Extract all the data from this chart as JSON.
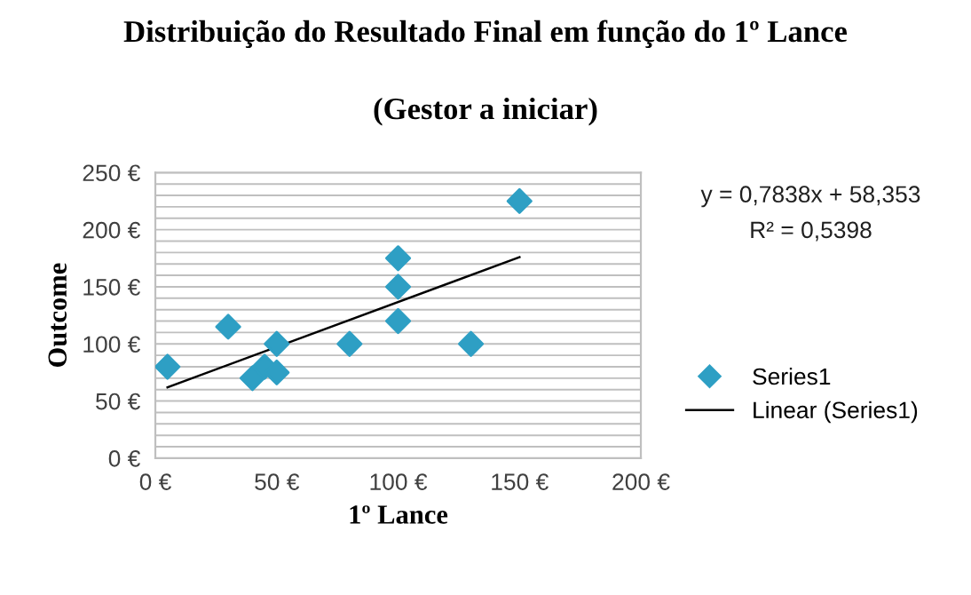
{
  "chart_data": {
    "type": "scatter",
    "title": "Distribuição do Resultado Final em função do 1º Lance",
    "subtitle": "(Gestor a iniciar)",
    "xlabel": "1º Lance",
    "ylabel": "Outcome",
    "series": [
      {
        "name": "Series1",
        "color": "#2e9fc4",
        "marker": "diamond",
        "x": [
          5,
          30,
          40,
          45,
          50,
          50,
          80,
          100,
          100,
          100,
          130,
          150
        ],
        "values": [
          80,
          115,
          70,
          80,
          100,
          75,
          100,
          175,
          150,
          120,
          100,
          225
        ]
      },
      {
        "name": "Linear (Series1)",
        "type": "line",
        "color": "#000000",
        "marker": "none",
        "line_style": "solid",
        "x": [
          5,
          150
        ],
        "values": [
          62,
          176
        ]
      }
    ],
    "xlim": [
      0,
      200
    ],
    "xticks": [
      {
        "value": 0,
        "label": "0 €"
      },
      {
        "value": 50,
        "label": "50 €"
      },
      {
        "value": 100,
        "label": "100 €"
      },
      {
        "value": 150,
        "label": "150 €"
      },
      {
        "value": 200,
        "label": "200 €"
      }
    ],
    "ylim": [
      0,
      250
    ],
    "yticks": [
      {
        "value": 0,
        "label": "0 €"
      },
      {
        "value": 10,
        "label": null
      },
      {
        "value": 20,
        "label": null
      },
      {
        "value": 30,
        "label": null
      },
      {
        "value": 40,
        "label": null
      },
      {
        "value": 50,
        "label": "50 €"
      },
      {
        "value": 60,
        "label": null
      },
      {
        "value": 70,
        "label": null
      },
      {
        "value": 80,
        "label": null
      },
      {
        "value": 90,
        "label": null
      },
      {
        "value": 100,
        "label": "100 €"
      },
      {
        "value": 110,
        "label": null
      },
      {
        "value": 120,
        "label": null
      },
      {
        "value": 130,
        "label": null
      },
      {
        "value": 140,
        "label": null
      },
      {
        "value": 150,
        "label": "150 €"
      },
      {
        "value": 160,
        "label": null
      },
      {
        "value": 170,
        "label": null
      },
      {
        "value": 180,
        "label": null
      },
      {
        "value": 190,
        "label": null
      },
      {
        "value": 200,
        "label": "200 €"
      },
      {
        "value": 210,
        "label": null
      },
      {
        "value": 220,
        "label": null
      },
      {
        "value": 230,
        "label": null
      },
      {
        "value": 240,
        "label": null
      },
      {
        "value": 250,
        "label": "250 €"
      }
    ],
    "grid": "y",
    "legend": "right",
    "annotations": [
      "y = 0,7838x + 58,353",
      "R² = 0,5398"
    ]
  }
}
